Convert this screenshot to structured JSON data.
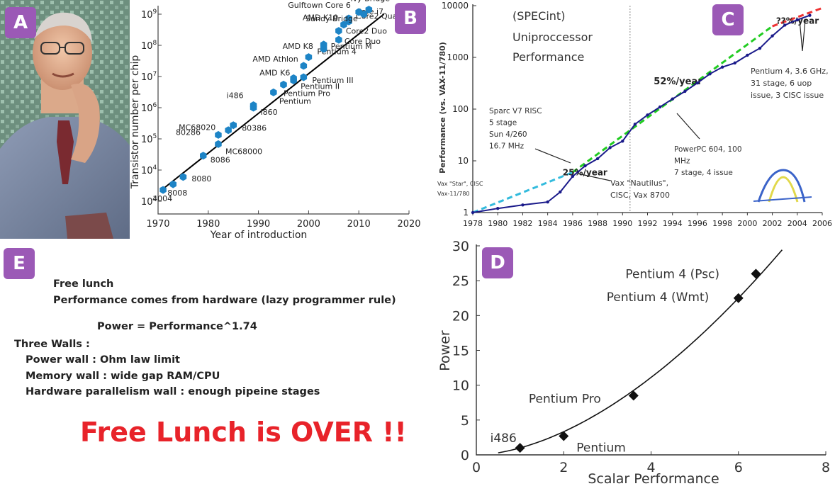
{
  "colors": {
    "badge": "#9b59b6",
    "marker_b": "#1d84c6",
    "text_red": "#e8232a",
    "line_c": "#1a1a8a",
    "trend_green": "#22cc22",
    "trend_cyan": "#33bbdd",
    "trend_red": "#ee3333"
  },
  "panel_a": {
    "badge": "A",
    "photo": "portrait-photo"
  },
  "panel_b": {
    "badge": "B",
    "chart_data": {
      "type": "scatter",
      "xlabel": "Year of introduction",
      "ylabel": "Transistor number per chip",
      "y_scale": "log",
      "xlim": [
        1970,
        2020
      ],
      "ylim": [
        1000,
        1000000000
      ],
      "x_ticks": [
        "1970",
        "1980",
        "1990",
        "2000",
        "2010",
        "2020"
      ],
      "y_ticks": [
        {
          "base": "10",
          "exp": "3",
          "value": 1000
        },
        {
          "base": "10",
          "exp": "4",
          "value": 10000
        },
        {
          "base": "10",
          "exp": "5",
          "value": 100000
        },
        {
          "base": "10",
          "exp": "6",
          "value": 1000000
        },
        {
          "base": "10",
          "exp": "7",
          "value": 10000000
        },
        {
          "base": "10",
          "exp": "8",
          "value": 100000000
        },
        {
          "base": "10",
          "exp": "9",
          "value": 1000000000
        }
      ],
      "trend_line": [
        [
          1971,
          2500
        ],
        [
          2015,
          1000000000
        ]
      ],
      "points": [
        {
          "label": "4004",
          "x": 1971,
          "y": 2300
        },
        {
          "label": "8008",
          "x": 1973,
          "y": 3500
        },
        {
          "label": "8080",
          "x": 1975,
          "y": 6000
        },
        {
          "label": "8086",
          "x": 1979,
          "y": 29000
        },
        {
          "label": "80286",
          "x": 1982,
          "y": 134000
        },
        {
          "label": "MC68000",
          "x": 1982,
          "y": 68000
        },
        {
          "label": "MC68020",
          "x": 1984,
          "y": 190000
        },
        {
          "label": "80386",
          "x": 1985,
          "y": 275000
        },
        {
          "label": "i486",
          "x": 1989,
          "y": 1200000
        },
        {
          "label": "i860",
          "x": 1989,
          "y": 1000000
        },
        {
          "label": "Pentium",
          "x": 1993,
          "y": 3100000
        },
        {
          "label": "Pentium Pro",
          "x": 1995,
          "y": 5500000
        },
        {
          "label": "AMD K6",
          "x": 1997,
          "y": 8800000
        },
        {
          "label": "Pentium II",
          "x": 1997,
          "y": 7500000
        },
        {
          "label": "Pentium III",
          "x": 1999,
          "y": 9500000
        },
        {
          "label": "AMD Athlon",
          "x": 1999,
          "y": 22000000
        },
        {
          "label": "Pentium 4",
          "x": 2000,
          "y": 42000000
        },
        {
          "label": "Pentium M",
          "x": 2003,
          "y": 77000000
        },
        {
          "label": "AMD K8",
          "x": 2003,
          "y": 105900000
        },
        {
          "label": "Core Duo",
          "x": 2006,
          "y": 151000000
        },
        {
          "label": "AMD K10",
          "x": 2007,
          "y": 463000000
        },
        {
          "label": "Core2 Duo",
          "x": 2006,
          "y": 291000000
        },
        {
          "label": "Core2 Quad",
          "x": 2008,
          "y": 582000000
        },
        {
          "label": "Core i7",
          "x": 2008,
          "y": 731000000
        },
        {
          "label": "Sandy Bridge",
          "x": 2011,
          "y": 1000000000
        },
        {
          "label": "Gulftown Core 6",
          "x": 2010,
          "y": 1170000000
        },
        {
          "label": "Ivy Bridge",
          "x": 2012,
          "y": 1400000000
        }
      ]
    }
  },
  "panel_c": {
    "badge": "C",
    "chart_data": {
      "type": "line",
      "title": "(SPECint) Uniproccessor Performance",
      "title_lines": [
        "(SPECint)",
        "Uniproccessor",
        "Performance"
      ],
      "ylabel": "Performance (vs. VAX-11/780)",
      "y_scale": "log",
      "xlim": [
        1978,
        2006
      ],
      "ylim": [
        1,
        10000
      ],
      "x_ticks": [
        "1978",
        "1980",
        "1982",
        "1984",
        "1986",
        "1988",
        "1990",
        "1992",
        "1994",
        "1996",
        "1998",
        "2000",
        "2002",
        "2004",
        "2006"
      ],
      "y_ticks": [
        "1",
        "10",
        "100",
        "1000",
        "10000"
      ],
      "series": [
        {
          "x": [
            1978,
            1980,
            1982,
            1984,
            1985,
            1986,
            1987,
            1988,
            1989,
            1990,
            1991,
            1992,
            1993,
            1994,
            1995,
            1996,
            1997,
            1998,
            1999,
            2000,
            2001,
            2002,
            2003,
            2004,
            2005
          ],
          "y": [
            1,
            1.2,
            1.4,
            1.6,
            2.5,
            5,
            8,
            11,
            18,
            24,
            51,
            77,
            110,
            157,
            220,
            320,
            480,
            650,
            780,
            1100,
            1500,
            2600,
            4200,
            5300,
            6500
          ]
        }
      ],
      "trends": [
        {
          "label": "25%/year",
          "x": [
            1978,
            1986
          ],
          "y": [
            1,
            6
          ]
        },
        {
          "label": "52%/year",
          "x": [
            1986,
            2002
          ],
          "y": [
            6,
            4000
          ]
        },
        {
          "label": "??%/year",
          "x": [
            2002,
            2006
          ],
          "y": [
            4000,
            9000
          ]
        }
      ],
      "annotations": [
        {
          "text": "Vax \"Star\", CISC Vax-11/780",
          "lines": [
            "Vax \"Star\", CISC",
            "Vax-11/780"
          ]
        },
        {
          "text": "Sparc V7 RISC 5 stage Sun 4/260 16.7 MHz",
          "lines": [
            "Sparc V7 RISC",
            "5 stage",
            "Sun 4/260",
            "16.7 MHz"
          ]
        },
        {
          "text": "Vax \"Nautilus\", CISC, Vax 8700",
          "lines": [
            "Vax \"Nautilus\",",
            "CISC, Vax 8700"
          ]
        },
        {
          "text": "PowerPC 604, 100 MHz 7 stage, 4 issue",
          "lines": [
            "PowerPC 604, 100",
            "MHz",
            "7 stage, 4 issue"
          ]
        },
        {
          "text": "Pentium 4, 3.6 GHz, 31 stage, 6 uop issue, 3 CISC issue",
          "lines": [
            "Pentium 4, 3.6 GHz,",
            "31 stage, 6 uop",
            "issue, 3 CISC issue"
          ]
        }
      ]
    }
  },
  "panel_d": {
    "badge": "D",
    "chart_data": {
      "type": "scatter",
      "xlabel": "Scalar Performance",
      "ylabel": "Power",
      "xlim": [
        0,
        8
      ],
      "ylim": [
        0,
        30
      ],
      "x_ticks": [
        "0",
        "2",
        "4",
        "6",
        "8"
      ],
      "y_ticks": [
        "0",
        "5",
        "10",
        "15",
        "20",
        "25",
        "30"
      ],
      "points": [
        {
          "label": "i486",
          "x": 1.0,
          "y": 1.0
        },
        {
          "label": "Pentium",
          "x": 2.0,
          "y": 2.7
        },
        {
          "label": "Pentium Pro",
          "x": 3.6,
          "y": 8.5
        },
        {
          "label": "Pentium 4 (Wmt)",
          "x": 6.0,
          "y": 22.5
        },
        {
          "label": "Pentium 4 (Psc)",
          "x": 6.4,
          "y": 26.0
        }
      ],
      "fit": {
        "formula": "Power = Performance^1.74",
        "x_range": [
          0.5,
          7.0
        ]
      }
    }
  },
  "panel_e": {
    "badge": "E",
    "lines": [
      "Free lunch",
      "Performance comes from hardware (lazy programmer  rule)",
      "Power =  Performance^1.74",
      "Three Walls :",
      "Power wall     : Ohm law limit",
      "Memory wall : wide gap RAM/CPU",
      "Hardware parallelism wall : enough pipeine stages"
    ],
    "headline": "Free Lunch is OVER !!"
  }
}
